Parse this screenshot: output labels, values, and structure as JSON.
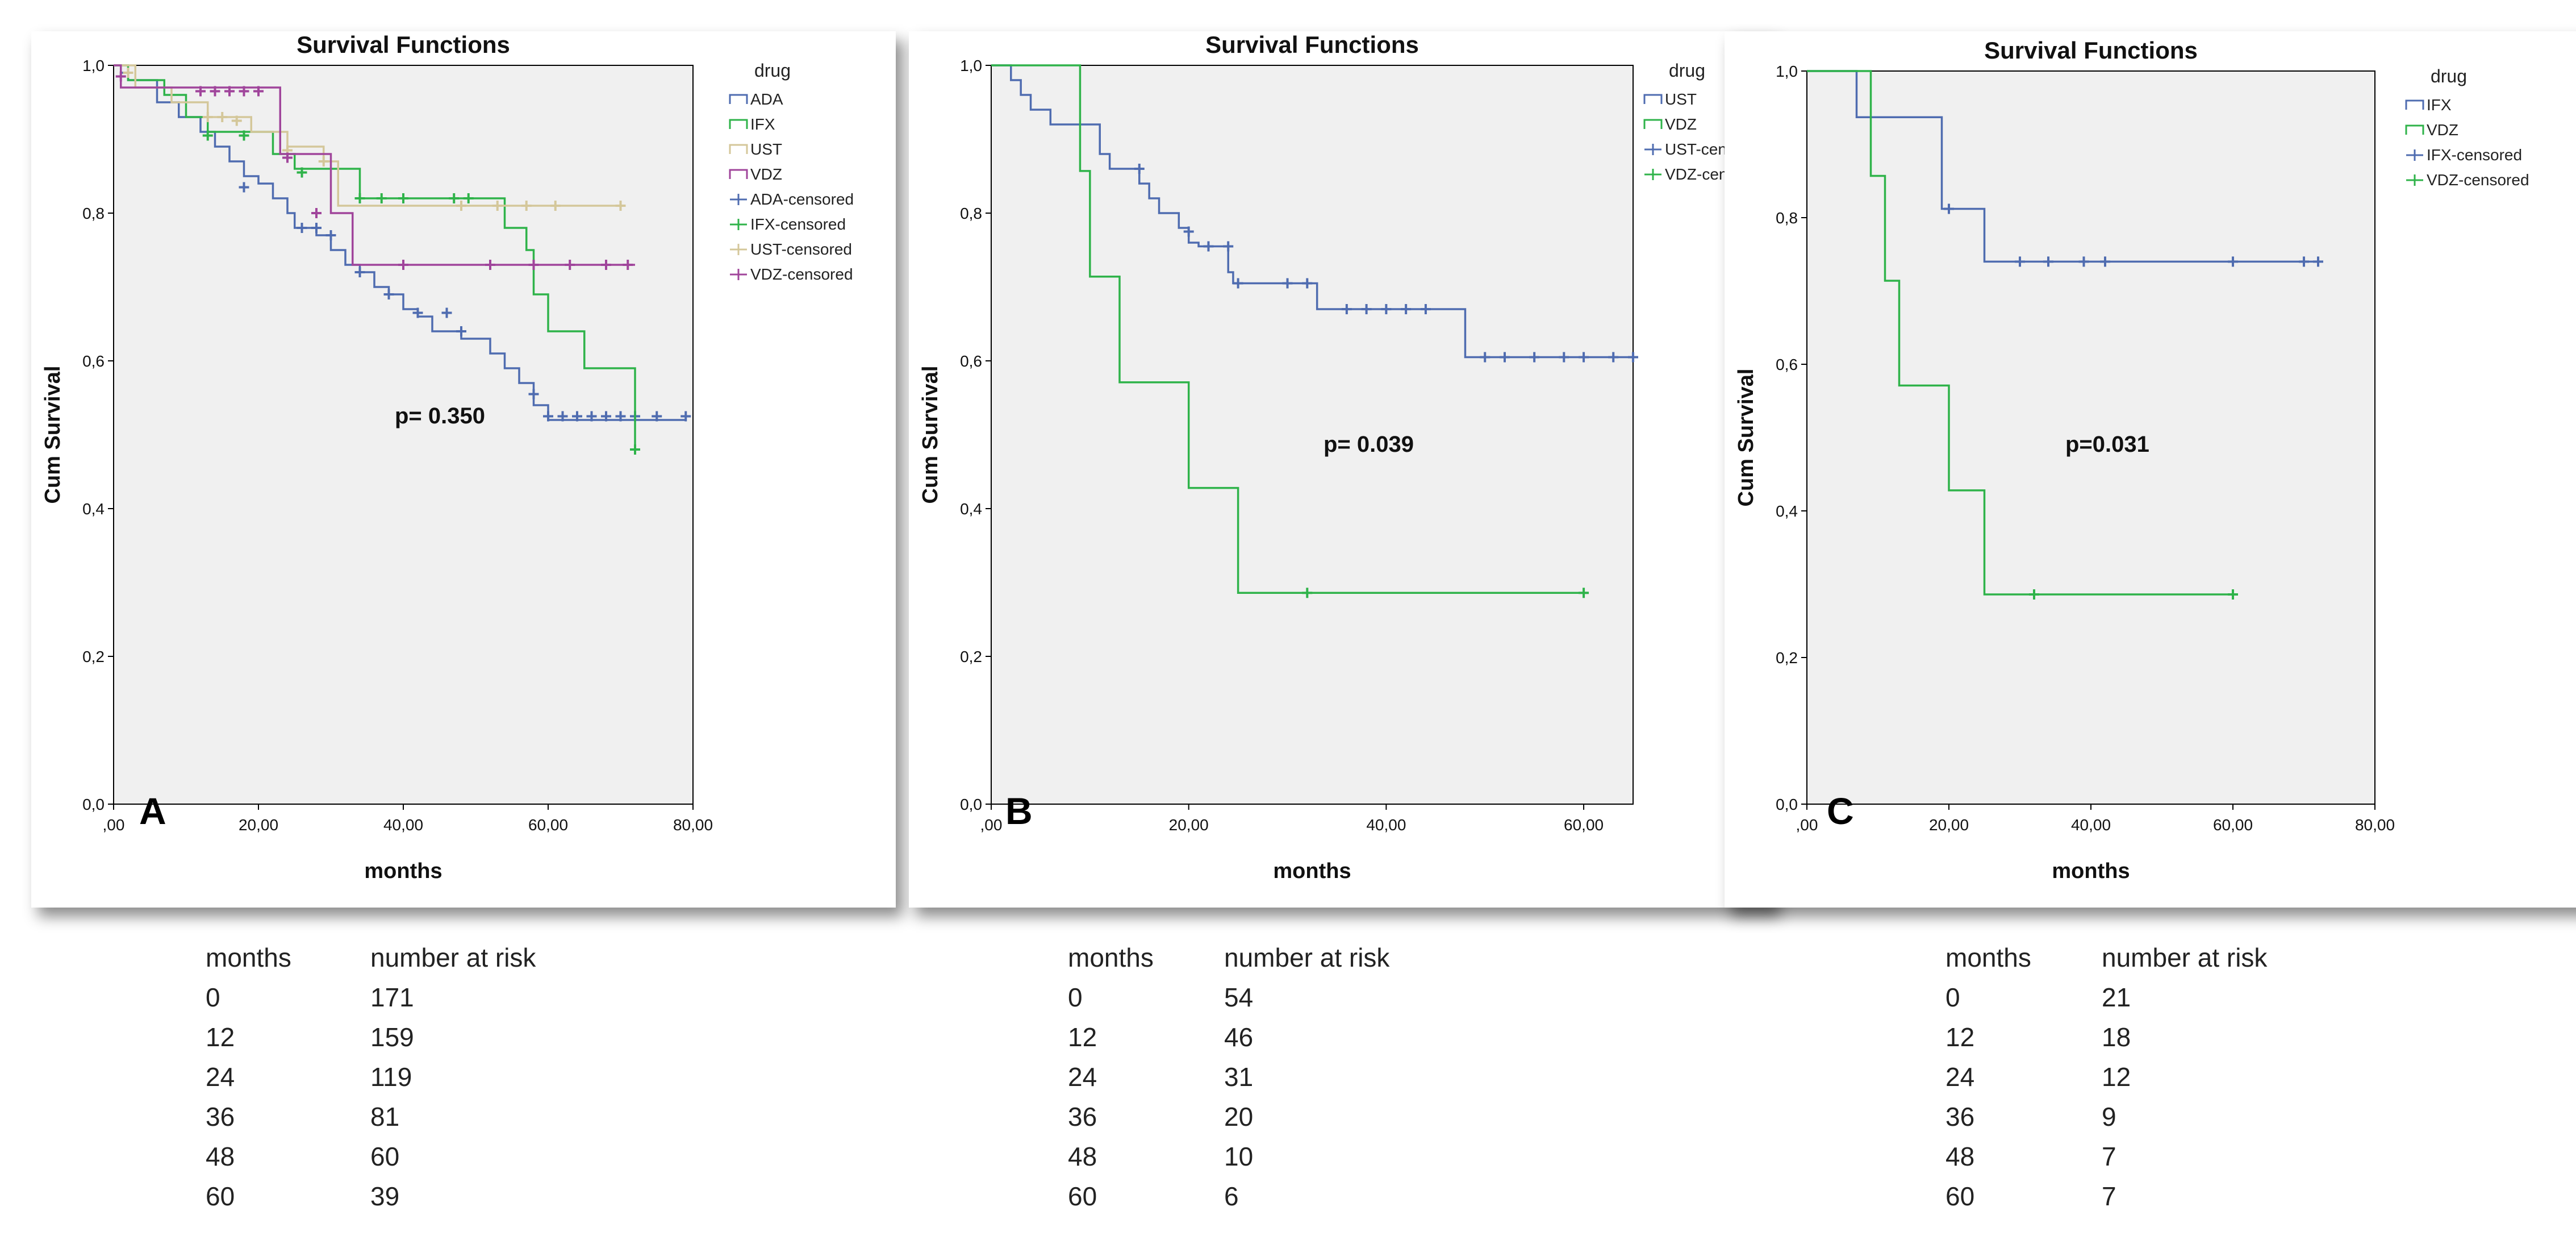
{
  "chart_data": [
    {
      "type": "line",
      "panel_label": "A",
      "title": "Survival Functions",
      "xlabel": "months",
      "ylabel": "Cum Survival",
      "xlim": [
        0,
        80
      ],
      "ylim": [
        0,
        1
      ],
      "xticks": [
        ",00",
        "20,00",
        "40,00",
        "60,00",
        "80,00"
      ],
      "yticks": [
        "0,0",
        "0,2",
        "0,4",
        "0,6",
        "0,8",
        "1,0"
      ],
      "grid": false,
      "legend_position": "right",
      "legend_title": "drug",
      "annotation": "p= 0.350",
      "series": [
        {
          "name": "ADA",
          "censor_label": "ADA-censored",
          "color": "#4f6cb0",
          "steps": [
            [
              0,
              1
            ],
            [
              1,
              0.99
            ],
            [
              2,
              0.98
            ],
            [
              6,
              0.95
            ],
            [
              9,
              0.93
            ],
            [
              12,
              0.91
            ],
            [
              14,
              0.89
            ],
            [
              16,
              0.87
            ],
            [
              18,
              0.85
            ],
            [
              20,
              0.84
            ],
            [
              22,
              0.82
            ],
            [
              24,
              0.8
            ],
            [
              25,
              0.78
            ],
            [
              28,
              0.77
            ],
            [
              30,
              0.75
            ],
            [
              32,
              0.73
            ],
            [
              34,
              0.72
            ],
            [
              36,
              0.7
            ],
            [
              38,
              0.69
            ],
            [
              40,
              0.67
            ],
            [
              42,
              0.66
            ],
            [
              44,
              0.64
            ],
            [
              48,
              0.63
            ],
            [
              52,
              0.61
            ],
            [
              54,
              0.59
            ],
            [
              56,
              0.57
            ],
            [
              58,
              0.54
            ],
            [
              60,
              0.52
            ],
            [
              79,
              0.52
            ]
          ],
          "censored": [
            [
              18,
              0.835
            ],
            [
              26,
              0.78
            ],
            [
              28,
              0.78
            ],
            [
              30,
              0.77
            ],
            [
              34,
              0.72
            ],
            [
              38,
              0.69
            ],
            [
              42,
              0.665
            ],
            [
              46,
              0.665
            ],
            [
              48,
              0.64
            ],
            [
              58,
              0.555
            ],
            [
              60,
              0.525
            ],
            [
              62,
              0.525
            ],
            [
              64,
              0.525
            ],
            [
              66,
              0.525
            ],
            [
              68,
              0.525
            ],
            [
              70,
              0.525
            ],
            [
              72,
              0.525
            ],
            [
              75,
              0.525
            ],
            [
              79,
              0.525
            ]
          ]
        },
        {
          "name": "IFX",
          "censor_label": "IFX-censored",
          "color": "#2fb34a",
          "steps": [
            [
              0,
              1
            ],
            [
              2,
              0.98
            ],
            [
              7,
              0.96
            ],
            [
              10,
              0.93
            ],
            [
              13,
              0.91
            ],
            [
              22,
              0.88
            ],
            [
              25,
              0.86
            ],
            [
              34,
              0.82
            ],
            [
              53,
              0.82
            ],
            [
              54,
              0.78
            ],
            [
              57,
              0.75
            ],
            [
              58,
              0.69
            ],
            [
              60,
              0.64
            ],
            [
              65,
              0.59
            ],
            [
              72,
              0.48
            ]
          ],
          "censored": [
            [
              13,
              0.905
            ],
            [
              18,
              0.905
            ],
            [
              26,
              0.855
            ],
            [
              34,
              0.82
            ],
            [
              37,
              0.82
            ],
            [
              40,
              0.82
            ],
            [
              47,
              0.82
            ],
            [
              49,
              0.82
            ],
            [
              72,
              0.48
            ]
          ]
        },
        {
          "name": "UST",
          "censor_label": "UST-censored",
          "color": "#d4c79a",
          "steps": [
            [
              0,
              1
            ],
            [
              3,
              0.97
            ],
            [
              8,
              0.95
            ],
            [
              13,
              0.93
            ],
            [
              19,
              0.91
            ],
            [
              24,
              0.89
            ],
            [
              29,
              0.87
            ],
            [
              31,
              0.81
            ],
            [
              70,
              0.81
            ]
          ],
          "censored": [
            [
              2,
              0.99
            ],
            [
              13,
              0.93
            ],
            [
              15,
              0.93
            ],
            [
              17,
              0.925
            ],
            [
              24,
              0.885
            ],
            [
              29,
              0.87
            ],
            [
              48,
              0.81
            ],
            [
              53,
              0.81
            ],
            [
              57,
              0.81
            ],
            [
              61,
              0.81
            ],
            [
              70,
              0.81
            ]
          ]
        },
        {
          "name": "VDZ",
          "censor_label": "VDZ-censored",
          "color": "#a0459b",
          "steps": [
            [
              0,
              1
            ],
            [
              1,
              0.97
            ],
            [
              21,
              0.97
            ],
            [
              23,
              0.88
            ],
            [
              30,
              0.8
            ],
            [
              33,
              0.73
            ],
            [
              72,
              0.73
            ]
          ],
          "censored": [
            [
              1,
              0.985
            ],
            [
              12,
              0.965
            ],
            [
              14,
              0.965
            ],
            [
              16,
              0.965
            ],
            [
              18,
              0.965
            ],
            [
              20,
              0.965
            ],
            [
              24,
              0.875
            ],
            [
              28,
              0.8
            ],
            [
              40,
              0.73
            ],
            [
              52,
              0.73
            ],
            [
              58,
              0.73
            ],
            [
              63,
              0.73
            ],
            [
              68,
              0.73
            ],
            [
              71,
              0.73
            ]
          ]
        }
      ],
      "risk_table": {
        "headers": [
          "months",
          "number at risk"
        ],
        "rows": [
          [
            "0",
            "171"
          ],
          [
            "12",
            "159"
          ],
          [
            "24",
            "119"
          ],
          [
            "36",
            "81"
          ],
          [
            "48",
            "60"
          ],
          [
            "60",
            "39"
          ]
        ]
      }
    },
    {
      "type": "line",
      "panel_label": "B",
      "title": "Survival Functions",
      "xlabel": "months",
      "ylabel": "Cum Survival",
      "xlim": [
        0,
        65
      ],
      "ylim": [
        0,
        1
      ],
      "xticks": [
        ",00",
        "20,00",
        "40,00",
        "60,00"
      ],
      "yticks": [
        "0,0",
        "0,2",
        "0,4",
        "0,6",
        "0,8",
        "1,0"
      ],
      "grid": false,
      "legend_position": "right",
      "legend_title": "drug",
      "annotation": "p= 0.039",
      "series": [
        {
          "name": "UST",
          "censor_label": "UST-censored",
          "color": "#4f6cb0",
          "steps": [
            [
              0,
              1
            ],
            [
              2,
              0.98
            ],
            [
              3,
              0.96
            ],
            [
              4,
              0.94
            ],
            [
              6,
              0.92
            ],
            [
              11,
              0.88
            ],
            [
              12,
              0.86
            ],
            [
              15,
              0.84
            ],
            [
              16,
              0.82
            ],
            [
              17,
              0.8
            ],
            [
              19,
              0.78
            ],
            [
              20,
              0.76
            ],
            [
              21,
              0.755
            ],
            [
              24,
              0.72
            ],
            [
              24.5,
              0.705
            ],
            [
              33,
              0.67
            ],
            [
              48,
              0.605
            ],
            [
              65,
              0.605
            ]
          ],
          "censored": [
            [
              15,
              0.86
            ],
            [
              20,
              0.775
            ],
            [
              22,
              0.755
            ],
            [
              24,
              0.755
            ],
            [
              25,
              0.705
            ],
            [
              30,
              0.705
            ],
            [
              32,
              0.705
            ],
            [
              36,
              0.67
            ],
            [
              38,
              0.67
            ],
            [
              40,
              0.67
            ],
            [
              42,
              0.67
            ],
            [
              44,
              0.67
            ],
            [
              50,
              0.605
            ],
            [
              52,
              0.605
            ],
            [
              55,
              0.605
            ],
            [
              58,
              0.605
            ],
            [
              60,
              0.605
            ],
            [
              63,
              0.605
            ],
            [
              65,
              0.605
            ]
          ]
        },
        {
          "name": "VDZ",
          "censor_label": "VDZ-censored",
          "color": "#2fb34a",
          "steps": [
            [
              0,
              1
            ],
            [
              9,
              0.857
            ],
            [
              10,
              0.714
            ],
            [
              13,
              0.571
            ],
            [
              20,
              0.428
            ],
            [
              25,
              0.286
            ],
            [
              60,
              0.286
            ]
          ],
          "censored": [
            [
              32,
              0.286
            ],
            [
              60,
              0.286
            ]
          ]
        }
      ],
      "risk_table": {
        "headers": [
          "months",
          "number at risk"
        ],
        "rows": [
          [
            "0",
            "54"
          ],
          [
            "12",
            "46"
          ],
          [
            "24",
            "31"
          ],
          [
            "36",
            "20"
          ],
          [
            "48",
            "10"
          ],
          [
            "60",
            "6"
          ]
        ]
      }
    },
    {
      "type": "line",
      "panel_label": "C",
      "title": "Survival Functions",
      "xlabel": "months",
      "ylabel": "Cum Survival",
      "xlim": [
        0,
        80
      ],
      "ylim": [
        0,
        1
      ],
      "xticks": [
        ",00",
        "20,00",
        "40,00",
        "60,00",
        "80,00"
      ],
      "yticks": [
        "0,0",
        "0,2",
        "0,4",
        "0,6",
        "0,8",
        "1,0"
      ],
      "grid": false,
      "legend_position": "right",
      "legend_title": "drug",
      "annotation": "p=0.031",
      "series": [
        {
          "name": "IFX",
          "censor_label": "IFX-censored",
          "color": "#4f6cb0",
          "steps": [
            [
              0,
              1
            ],
            [
              7,
              0.937
            ],
            [
              19,
              0.812
            ],
            [
              25,
              0.74
            ],
            [
              72,
              0.74
            ]
          ],
          "censored": [
            [
              20,
              0.812
            ],
            [
              30,
              0.74
            ],
            [
              34,
              0.74
            ],
            [
              39,
              0.74
            ],
            [
              42,
              0.74
            ],
            [
              60,
              0.74
            ],
            [
              70,
              0.74
            ],
            [
              72,
              0.74
            ]
          ]
        },
        {
          "name": "VDZ",
          "censor_label": "VDZ-censored",
          "color": "#2fb34a",
          "steps": [
            [
              0,
              1
            ],
            [
              9,
              0.857
            ],
            [
              11,
              0.714
            ],
            [
              13,
              0.571
            ],
            [
              20,
              0.428
            ],
            [
              25,
              0.286
            ],
            [
              60,
              0.286
            ]
          ],
          "censored": [
            [
              32,
              0.286
            ],
            [
              60,
              0.286
            ]
          ]
        }
      ],
      "risk_table": {
        "headers": [
          "months",
          "number at risk"
        ],
        "rows": [
          [
            "0",
            "21"
          ],
          [
            "12",
            "18"
          ],
          [
            "24",
            "12"
          ],
          [
            "36",
            "9"
          ],
          [
            "48",
            "7"
          ],
          [
            "60",
            "7"
          ]
        ]
      }
    }
  ]
}
